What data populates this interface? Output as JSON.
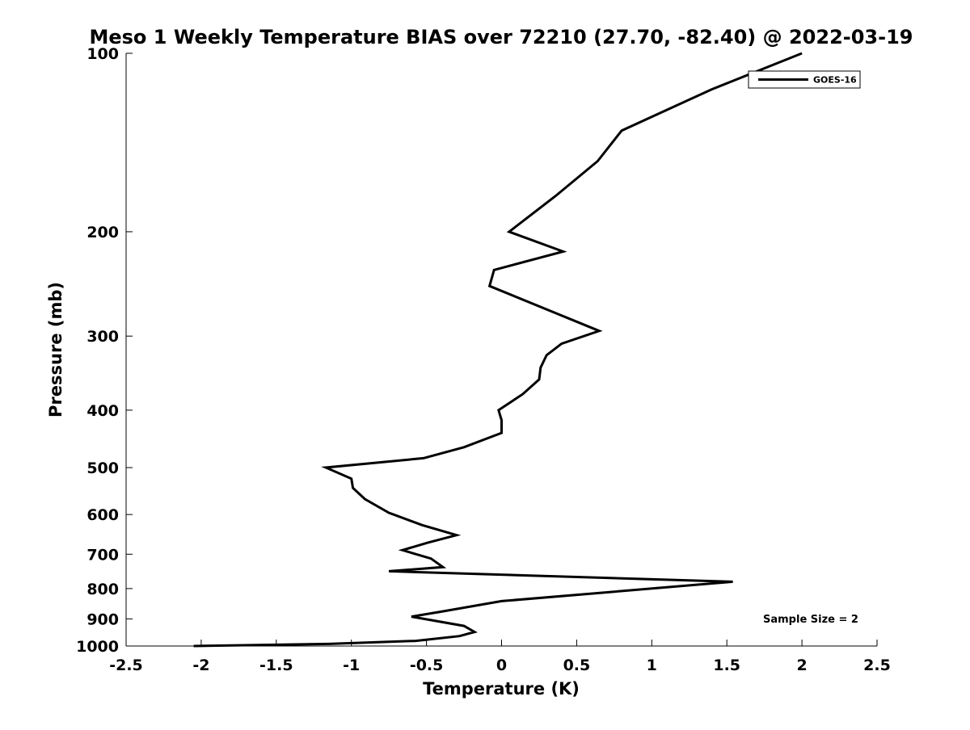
{
  "chart_data": {
    "type": "line",
    "title": "Meso 1 Weekly Temperature BIAS over 72210 (27.70, -82.40) @ 2022-03-19",
    "xlabel": "Temperature (K)",
    "ylabel": "Pressure (mb)",
    "xlim": [
      -2.5,
      2.5
    ],
    "ylim": [
      1000,
      100
    ],
    "y_scale": "log",
    "y_reversed": true,
    "x_ticks": [
      -2.5,
      -2,
      -1.5,
      -1,
      -0.5,
      0,
      0.5,
      1,
      1.5,
      2,
      2.5
    ],
    "x_tick_labels": [
      "-2.5",
      "-2",
      "-1.5",
      "-1",
      "-0.5",
      "0",
      "0.5",
      "1",
      "1.5",
      "2",
      "2.5"
    ],
    "y_ticks": [
      100,
      200,
      300,
      400,
      500,
      600,
      700,
      800,
      900,
      1000
    ],
    "y_tick_labels": [
      "100",
      "200",
      "300",
      "400",
      "500",
      "600",
      "700",
      "800",
      "900",
      "1000"
    ],
    "grid": false,
    "legend_position": "top-right",
    "annotation": "Sample Size = 2",
    "series": [
      {
        "name": "GOES-16",
        "color": "#000000",
        "x": [
          2.0,
          1.4,
          0.8,
          0.64,
          0.36,
          0.05,
          0.41,
          -0.05,
          -0.08,
          0.65,
          0.4,
          0.3,
          0.26,
          0.25,
          0.14,
          -0.02,
          0,
          0,
          -0.25,
          -0.52,
          -1.17,
          -1.0,
          -0.99,
          -0.91,
          -0.75,
          -0.53,
          -0.3,
          -0.49,
          -0.66,
          -0.47,
          -0.39,
          -0.75,
          1.54,
          0.0,
          -0.4,
          -0.6,
          -0.25,
          -0.18,
          -0.28,
          -0.57,
          -1.15,
          -2.05
        ],
        "y": [
          100,
          115,
          135,
          152,
          174,
          200,
          216,
          232,
          247,
          294,
          309,
          323,
          339,
          355,
          376,
          400,
          416,
          437,
          462,
          482,
          500,
          522,
          541,
          565,
          596,
          625,
          650,
          669,
          689,
          712,
          736,
          748,
          779,
          840,
          875,
          892,
          925,
          947,
          962,
          980,
          992,
          1000
        ]
      }
    ]
  }
}
